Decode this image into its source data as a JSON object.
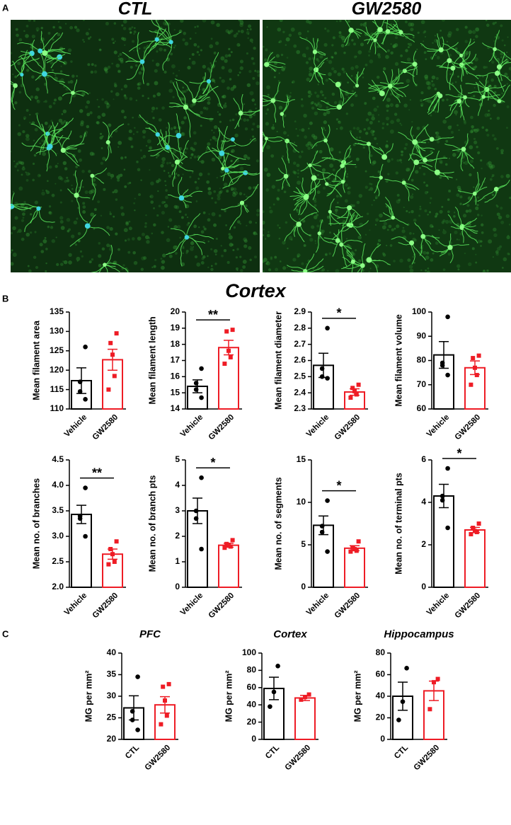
{
  "panel_labels": [
    "A",
    "B",
    "C"
  ],
  "images": [
    {
      "label": "CTL"
    },
    {
      "label": "GW2580"
    }
  ],
  "section_title": "Cortex",
  "chart_data": [
    {
      "type": "bar",
      "ylabel": "Mean filament area",
      "categories": [
        "Vehicle",
        "GW2580"
      ],
      "values": [
        117.3,
        122.7
      ],
      "errors": [
        3.3,
        2.7
      ],
      "points": [
        [
          126,
          117,
          114.5,
          112.5
        ],
        [
          129.5,
          127,
          124,
          118.5,
          115
        ]
      ],
      "colors": [
        "#000000",
        "#ee1c25"
      ],
      "markers": [
        "circle",
        "square"
      ],
      "ylim": [
        110,
        135
      ],
      "yticks": [
        110,
        115,
        120,
        125,
        130,
        135
      ]
    },
    {
      "type": "bar",
      "ylabel": "Mean filament length",
      "categories": [
        "Vehicle",
        "GW2580"
      ],
      "values": [
        15.4,
        17.8
      ],
      "errors": [
        0.4,
        0.45
      ],
      "points": [
        [
          16.5,
          15.6,
          15.2,
          14.7
        ],
        [
          18.9,
          18.8,
          17.6,
          17.2,
          16.8
        ]
      ],
      "colors": [
        "#000000",
        "#ee1c25"
      ],
      "markers": [
        "circle",
        "square"
      ],
      "ylim": [
        14,
        20
      ],
      "yticks": [
        14,
        15,
        16,
        17,
        18,
        19,
        20
      ],
      "significance": "**"
    },
    {
      "type": "bar",
      "ylabel": "Mean filament diameter",
      "categories": [
        "Vehicle",
        "GW2580"
      ],
      "values": [
        2.57,
        2.405
      ],
      "errors": [
        0.075,
        0.02
      ],
      "points": [
        [
          2.8,
          2.55,
          2.5,
          2.49
        ],
        [
          2.45,
          2.43,
          2.41,
          2.39,
          2.37
        ]
      ],
      "colors": [
        "#000000",
        "#ee1c25"
      ],
      "markers": [
        "circle",
        "square"
      ],
      "ylim": [
        2.3,
        2.9
      ],
      "yticks": [
        2.3,
        2.4,
        2.5,
        2.6,
        2.7,
        2.8,
        2.9
      ],
      "significance": "*"
    },
    {
      "type": "bar",
      "ylabel": "Mean filament volume",
      "categories": [
        "Vehicle",
        "GW2580"
      ],
      "values": [
        82.3,
        77
      ],
      "errors": [
        5.5,
        2.8
      ],
      "points": [
        [
          98,
          79,
          78,
          74
        ],
        [
          82,
          81,
          77,
          74,
          70
        ]
      ],
      "colors": [
        "#000000",
        "#ee1c25"
      ],
      "markers": [
        "circle",
        "square"
      ],
      "ylim": [
        60,
        100
      ],
      "yticks": [
        60,
        70,
        80,
        90,
        100
      ]
    },
    {
      "type": "bar",
      "ylabel": "Mean no. of branches",
      "categories": [
        "Vehicle",
        "GW2580"
      ],
      "values": [
        3.43,
        2.65
      ],
      "errors": [
        0.18,
        0.1
      ],
      "points": [
        [
          3.95,
          3.4,
          3.35,
          3.0
        ],
        [
          2.9,
          2.75,
          2.65,
          2.5,
          2.45
        ]
      ],
      "colors": [
        "#000000",
        "#ee1c25"
      ],
      "markers": [
        "circle",
        "square"
      ],
      "ylim": [
        2,
        4.5
      ],
      "yticks": [
        {
          "value": 2,
          "label": "2.0"
        },
        2.5,
        {
          "value": 3,
          "label": "3.0"
        },
        3.5,
        {
          "value": 4,
          "label": "4.0"
        },
        4.5
      ],
      "significance": "**"
    },
    {
      "type": "bar",
      "ylabel": "Mean no. of branch pts",
      "categories": [
        "Vehicle",
        "GW2580"
      ],
      "values": [
        3.0,
        1.65
      ],
      "errors": [
        0.5,
        0.08
      ],
      "points": [
        [
          4.3,
          3.0,
          2.7,
          1.5
        ],
        [
          1.85,
          1.7,
          1.65,
          1.6,
          1.55
        ]
      ],
      "colors": [
        "#000000",
        "#ee1c25"
      ],
      "markers": [
        "circle",
        "square"
      ],
      "ylim": [
        0,
        5
      ],
      "yticks": [
        0,
        1,
        2,
        3,
        4,
        5
      ],
      "significance": "*"
    },
    {
      "type": "bar",
      "ylabel": "Mean no. of segments",
      "categories": [
        "Vehicle",
        "GW2580"
      ],
      "values": [
        7.3,
        4.6
      ],
      "errors": [
        1.1,
        0.3
      ],
      "points": [
        [
          10.2,
          7.2,
          6.5,
          4.2
        ],
        [
          5.4,
          4.7,
          4.5,
          4.3,
          4.2
        ]
      ],
      "colors": [
        "#000000",
        "#ee1c25"
      ],
      "markers": [
        "circle",
        "square"
      ],
      "ylim": [
        0,
        15
      ],
      "yticks": [
        0,
        5,
        10,
        15
      ],
      "significance": "*"
    },
    {
      "type": "bar",
      "ylabel": "Mean no. of terminal pts",
      "categories": [
        "Vehicle",
        "GW2580"
      ],
      "values": [
        4.3,
        2.7
      ],
      "errors": [
        0.55,
        0.12
      ],
      "points": [
        [
          5.6,
          4.3,
          4.1,
          2.8
        ],
        [
          3.0,
          2.8,
          2.65,
          2.6,
          2.5
        ]
      ],
      "colors": [
        "#000000",
        "#ee1c25"
      ],
      "markers": [
        "circle",
        "square"
      ],
      "ylim": [
        0,
        6
      ],
      "yticks": [
        0,
        2,
        4,
        6
      ],
      "significance": "*"
    },
    {
      "type": "bar",
      "title": "PFC",
      "ylabel": "MG per mm²",
      "categories": [
        "CTL",
        "GW2580"
      ],
      "values": [
        27.3,
        28.0
      ],
      "errors": [
        2.8,
        1.9
      ],
      "points": [
        [
          34.5,
          26.5,
          24.5,
          22.2
        ],
        [
          32.8,
          32.2,
          29,
          25.5,
          23.5
        ]
      ],
      "colors": [
        "#000000",
        "#ee1c25"
      ],
      "markers": [
        "circle",
        "square"
      ],
      "ylim": [
        20,
        40
      ],
      "yticks": [
        20,
        25,
        30,
        35,
        40
      ]
    },
    {
      "type": "bar",
      "title": "Cortex",
      "ylabel": "MG per mm²",
      "categories": [
        "CTL",
        "GW2580"
      ],
      "values": [
        59,
        48
      ],
      "errors": [
        13,
        3
      ],
      "points": [
        [
          85,
          55,
          38
        ],
        [
          52,
          49,
          46
        ]
      ],
      "colors": [
        "#000000",
        "#ee1c25"
      ],
      "markers": [
        "circle",
        "square"
      ],
      "ylim": [
        0,
        100
      ],
      "yticks": [
        0,
        20,
        40,
        60,
        80,
        100
      ]
    },
    {
      "type": "bar",
      "title": "Hippocampus",
      "ylabel": "MG per mm²",
      "categories": [
        "CTL",
        "GW2580"
      ],
      "values": [
        40,
        45
      ],
      "errors": [
        13,
        9
      ],
      "points": [
        [
          66,
          35,
          18
        ],
        [
          56,
          53,
          28
        ]
      ],
      "colors": [
        "#000000",
        "#ee1c25"
      ],
      "markers": [
        "circle",
        "square"
      ],
      "ylim": [
        0,
        80
      ],
      "yticks": [
        0,
        20,
        40,
        60,
        80
      ]
    }
  ]
}
